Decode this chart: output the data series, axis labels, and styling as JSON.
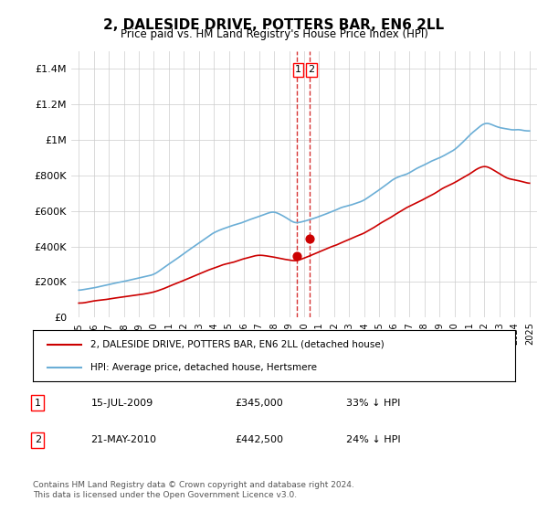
{
  "title": "2, DALESIDE DRIVE, POTTERS BAR, EN6 2LL",
  "subtitle": "Price paid vs. HM Land Registry's House Price Index (HPI)",
  "xlabel": "",
  "ylabel": "",
  "ylim": [
    0,
    1500000
  ],
  "yticks": [
    0,
    200000,
    400000,
    600000,
    800000,
    1000000,
    1200000,
    1400000
  ],
  "ytick_labels": [
    "£0",
    "£200K",
    "£400K",
    "£600K",
    "£800K",
    "£1M",
    "£1.2M",
    "£1.4M"
  ],
  "x_start_year": 1995,
  "x_end_year": 2025,
  "purchase_dates": [
    "2009-07-15",
    "2010-05-21"
  ],
  "purchase_prices": [
    345000,
    442500
  ],
  "purchase_labels": [
    "1",
    "2"
  ],
  "hpi_color": "#6baed6",
  "price_color": "#cc0000",
  "vline_color": "#cc0000",
  "marker_color": "#cc0000",
  "legend_entries": [
    "2, DALESIDE DRIVE, POTTERS BAR, EN6 2LL (detached house)",
    "HPI: Average price, detached house, Hertsmere"
  ],
  "table_data": [
    [
      "1",
      "15-JUL-2009",
      "£345,000",
      "33% ↓ HPI"
    ],
    [
      "2",
      "21-MAY-2010",
      "£442,500",
      "24% ↓ HPI"
    ]
  ],
  "footnote": "Contains HM Land Registry data © Crown copyright and database right 2024.\nThis data is licensed under the Open Government Licence v3.0.",
  "background_color": "#ffffff",
  "grid_color": "#cccccc"
}
